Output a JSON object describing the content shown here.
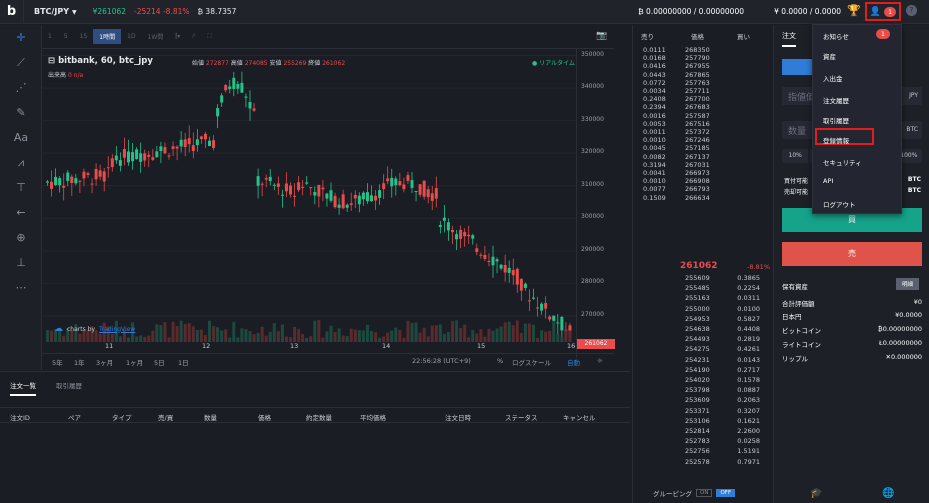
{
  "topbar": {
    "pair": "BTC/JPY",
    "price": "¥261062",
    "change": "-25214 -8.81%",
    "volume": "₿ 38.7357",
    "balance_btc": "₿ 0.00000000 / 0.00000000",
    "balance_jpy": "¥ 0.0000 / 0.0000",
    "badge": "1"
  },
  "timeframes": [
    "1",
    "5",
    "15",
    "1時間",
    "1D",
    "1W間"
  ],
  "chart": {
    "title": "bitbank, 60, btc_jpy",
    "ohlc_open_label": "始値",
    "ohlc_open": "272877",
    "ohlc_high_label": "高値",
    "ohlc_high": "274085",
    "ohlc_low_label": "安値",
    "ohlc_low": "255269",
    "ohlc_close_label": "終値",
    "ohlc_close": "261062",
    "vol_label": "出来高",
    "vol_val": "0 n/a",
    "realtime": "● リアルタイム",
    "tv_text": "charts by",
    "tv_link": "TradingView",
    "last_label": "261062"
  },
  "chart_data": {
    "type": "candlestick",
    "yticks": [
      "350000",
      "340000",
      "330000",
      "320000",
      "310000",
      "300000",
      "290000",
      "280000",
      "270000"
    ],
    "xticks": [
      "11",
      "12",
      "13",
      "14",
      "15",
      "16"
    ],
    "ylim": [
      262000,
      352000
    ]
  },
  "rangebar": {
    "items": [
      "5年",
      "1年",
      "3ヶ月",
      "1ヶ月",
      "5日",
      "1日"
    ],
    "time": "22:56:28 (UTC+9)",
    "pct": "%",
    "log": "ログスケール",
    "auto": "自動"
  },
  "orders": {
    "tabs": [
      "注文一覧",
      "取引履歴"
    ],
    "headers": [
      "注文ID",
      "ペア",
      "タイプ",
      "売/買",
      "数量",
      "価格",
      "約定数量",
      "平均価格",
      "注文日時",
      "ステータス",
      "キャンセル"
    ]
  },
  "book": {
    "headers": [
      "売り",
      "価格",
      "買い"
    ],
    "asks": [
      [
        "0.0111",
        "268350"
      ],
      [
        "0.0168",
        "257790"
      ],
      [
        "0.0416",
        "267955"
      ],
      [
        "0.0443",
        "267865"
      ],
      [
        "0.0772",
        "257763"
      ],
      [
        "0.0034",
        "257711"
      ],
      [
        "0.2408",
        "267700"
      ],
      [
        "0.2394",
        "267683"
      ],
      [
        "0.0016",
        "257587"
      ],
      [
        "0.0053",
        "267516"
      ],
      [
        "0.0011",
        "257372"
      ],
      [
        "0.0010",
        "267246"
      ],
      [
        "0.0045",
        "257185"
      ],
      [
        "0.0082",
        "267137"
      ],
      [
        "0.3194",
        "267031"
      ],
      [
        "0.0041",
        "266973"
      ],
      [
        "0.0010",
        "266908"
      ],
      [
        "0.0077",
        "266793"
      ],
      [
        "0.1509",
        "266634"
      ]
    ],
    "last": "261062",
    "last_pct": "-8.81%",
    "bids": [
      [
        "255609",
        "0.3865"
      ],
      [
        "255485",
        "0.2254"
      ],
      [
        "255163",
        "0.0311"
      ],
      [
        "255000",
        "0.0100"
      ],
      [
        "254953",
        "0.5827"
      ],
      [
        "254638",
        "0.4408"
      ],
      [
        "254493",
        "0.2819"
      ],
      [
        "254275",
        "0.4261"
      ],
      [
        "254231",
        "0.0143"
      ],
      [
        "254190",
        "0.2717"
      ],
      [
        "254020",
        "0.1578"
      ],
      [
        "253798",
        "0.0887"
      ],
      [
        "253609",
        "0.2063"
      ],
      [
        "253371",
        "0.3207"
      ],
      [
        "253106",
        "0.1621"
      ],
      [
        "252814",
        "2.2600"
      ],
      [
        "252783",
        "0.0258"
      ],
      [
        "252756",
        "1.5191"
      ],
      [
        "252578",
        "0.7971"
      ]
    ],
    "grouping": "グルーピング",
    "on": "ON",
    "off": "OFF"
  },
  "side": {
    "tab": "注文",
    "price_ph": "指値価",
    "price_unit": "JPY",
    "qty_ph": "数量",
    "qty_unit": "BTC",
    "pcts": [
      "10%",
      "",
      "",
      "",
      "100%"
    ],
    "buyable": "買付可能",
    "buyable_unit": "BTC",
    "sellable": "売却可能",
    "sellable_unit": "BTC",
    "buy": "買",
    "sell": "売",
    "holdings": "保有資産",
    "hold_btn": "明細",
    "assets": [
      [
        "合計評価額",
        "¥0"
      ],
      [
        "日本円",
        "¥0.0000"
      ],
      [
        "ビットコイン",
        "₿0.00000000"
      ],
      [
        "ライトコイン",
        "Ł0.00000000"
      ],
      [
        "リップル",
        "✕0.000000"
      ]
    ]
  },
  "menu": {
    "items": [
      "お知らせ",
      "資産",
      "入出金",
      "注文履歴",
      "取引履歴",
      "登録情報",
      "セキュリティ",
      "API",
      "ログアウト"
    ],
    "badge": "1"
  }
}
